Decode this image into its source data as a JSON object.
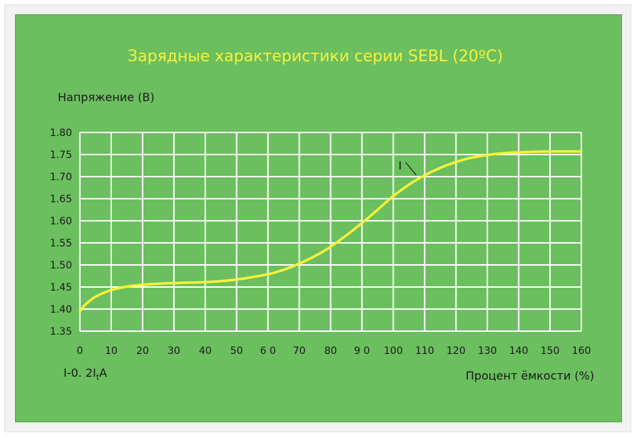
{
  "chart_data": {
    "type": "line",
    "title": "Зарядные характеристики серии SEBL (20ºC)",
    "ylabel": "Напряжение (В)",
    "xlabel": "Процент ёмкости (%)",
    "note": "I-0. 2ItA",
    "x_ticks": [
      "0",
      "10",
      "20",
      "30",
      "40",
      "50",
      "6 0",
      "70",
      "80",
      "9 0",
      "100",
      "110",
      "120",
      "130",
      "140",
      "150",
      "160"
    ],
    "y_ticks": [
      "1.35",
      "1.40",
      "1.45",
      "1.50",
      "1.55",
      "1.60",
      "1.65",
      "1.70",
      "1.75",
      "1.80"
    ],
    "xlim": [
      0,
      160
    ],
    "ylim": [
      1.35,
      1.8
    ],
    "grid": true,
    "series": [
      {
        "name": "I",
        "color": "#f7f23a",
        "x": [
          0,
          2,
          5,
          10,
          15,
          20,
          30,
          40,
          50,
          60,
          65,
          70,
          75,
          80,
          85,
          90,
          95,
          100,
          105,
          110,
          115,
          120,
          125,
          130,
          135,
          140,
          150,
          160
        ],
        "y": [
          1.395,
          1.412,
          1.428,
          1.443,
          1.451,
          1.455,
          1.459,
          1.461,
          1.467,
          1.479,
          1.489,
          1.503,
          1.52,
          1.541,
          1.567,
          1.595,
          1.625,
          1.656,
          1.682,
          1.703,
          1.72,
          1.733,
          1.743,
          1.749,
          1.753,
          1.755,
          1.757,
          1.757
        ]
      }
    ]
  }
}
